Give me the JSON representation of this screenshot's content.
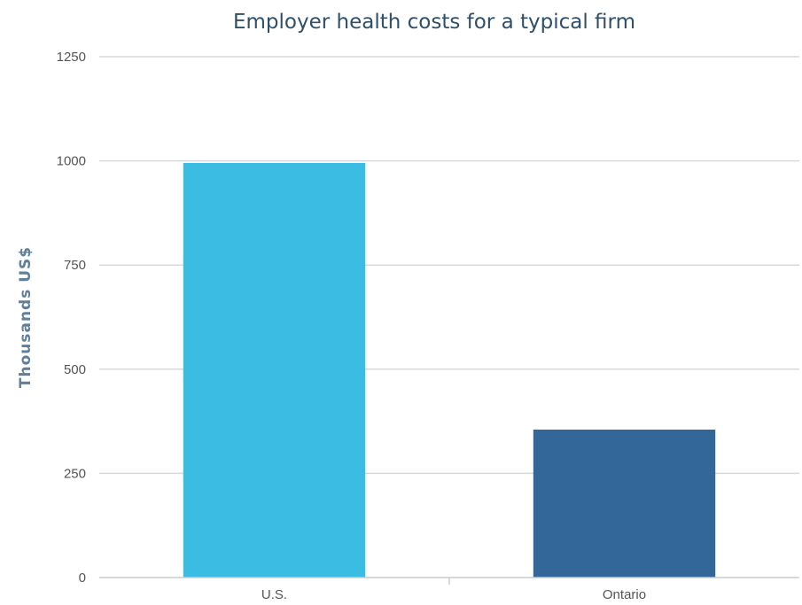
{
  "chart_data": {
    "type": "bar",
    "title": "Employer health costs for a typical firm",
    "xlabel": "",
    "ylabel": "Thousands US$",
    "categories": [
      "U.S.",
      "Ontario"
    ],
    "values": [
      995,
      355
    ],
    "ylim": [
      0,
      1250
    ],
    "yticks": [
      0,
      250,
      500,
      750,
      1000,
      1250
    ],
    "bar_colors": [
      "#3bbde3",
      "#336699"
    ],
    "grid": true,
    "legend": "none"
  },
  "colors": {
    "title": "#2f4f6b",
    "axis_label": "#5f7f9b",
    "tick_label": "#555555",
    "gridline": "#d8d8d8"
  }
}
